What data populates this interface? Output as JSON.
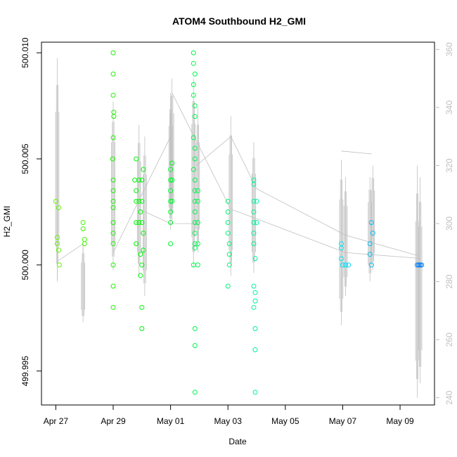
{
  "chart_data": {
    "type": "scatter",
    "title": "ATOM4 Southbound H2_GMI",
    "xlabel": "Date",
    "ylabel": "H2_GMI",
    "y2label": "",
    "x_ticks": [
      "Apr 27",
      "Apr 29",
      "May 01",
      "May 03",
      "May 05",
      "May 07",
      "May 09"
    ],
    "x_tick_values": [
      0,
      2,
      4,
      6,
      8,
      10,
      12
    ],
    "y_ticks": [
      "499.995",
      "500.000",
      "500.005",
      "500.010"
    ],
    "y_tick_values": [
      499.995,
      500.0,
      500.005,
      500.01
    ],
    "y2_ticks": [
      "240",
      "260",
      "280",
      "300",
      "320",
      "340",
      "360"
    ],
    "y2_tick_values": [
      240,
      260,
      280,
      300,
      320,
      340,
      360
    ],
    "x_range": [
      -0.5,
      13.2
    ],
    "y_range": [
      499.9934,
      500.0105
    ],
    "y2_range": [
      237.5,
      362.5
    ],
    "grid": false,
    "series": [
      {
        "marker": "open-circle",
        "color_scale": "time-gradient green to blue",
        "points": [
          [
            0.0,
            500.003
          ],
          [
            0.05,
            500.001
          ],
          [
            0.1,
            500.0027
          ],
          [
            0.05,
            500.0013
          ],
          [
            0.1,
            500.0007
          ],
          [
            0.12,
            500.0
          ],
          [
            0.95,
            500.002
          ],
          [
            0.95,
            500.0017
          ],
          [
            1.0,
            500.0012
          ],
          [
            1.0,
            500.001
          ],
          [
            2.0,
            500.01
          ],
          [
            2.0,
            500.009
          ],
          [
            2.0,
            500.008
          ],
          [
            2.02,
            500.0072
          ],
          [
            2.02,
            500.007
          ],
          [
            2.0,
            500.006
          ],
          [
            1.98,
            500.005
          ],
          [
            2.0,
            500.004
          ],
          [
            2.0,
            500.0035
          ],
          [
            2.0,
            500.003
          ],
          [
            2.0,
            500.0027
          ],
          [
            2.0,
            500.002
          ],
          [
            2.0,
            500.0015
          ],
          [
            2.0,
            500.001
          ],
          [
            2.0,
            500.0
          ],
          [
            2.0,
            499.999
          ],
          [
            2.0,
            499.998
          ],
          [
            2.8,
            500.005
          ],
          [
            2.75,
            500.004
          ],
          [
            2.8,
            500.0035
          ],
          [
            2.8,
            500.003
          ],
          [
            2.8,
            500.002
          ],
          [
            2.8,
            500.001
          ],
          [
            2.9,
            500.004
          ],
          [
            2.9,
            500.003
          ],
          [
            2.9,
            500.002
          ],
          [
            2.95,
            500.0025
          ],
          [
            2.95,
            500.0005
          ],
          [
            2.95,
            499.9995
          ],
          [
            3.0,
            500.004
          ],
          [
            3.0,
            500.003
          ],
          [
            3.0,
            500.002
          ],
          [
            3.0,
            500.0
          ],
          [
            3.0,
            499.998
          ],
          [
            3.0,
            499.997
          ],
          [
            3.05,
            500.0045
          ],
          [
            3.05,
            500.0015
          ],
          [
            3.05,
            500.0007
          ],
          [
            4.0,
            500.004
          ],
          [
            4.0,
            500.0045
          ],
          [
            4.0,
            500.0035
          ],
          [
            4.0,
            500.003
          ],
          [
            4.0,
            500.0025
          ],
          [
            4.0,
            500.002
          ],
          [
            4.0,
            500.001
          ],
          [
            4.05,
            500.0048
          ],
          [
            4.05,
            500.004
          ],
          [
            4.05,
            500.003
          ],
          [
            4.8,
            500.01
          ],
          [
            4.8,
            500.0095
          ],
          [
            4.85,
            500.009
          ],
          [
            4.8,
            500.0085
          ],
          [
            4.8,
            500.008
          ],
          [
            4.85,
            500.0075
          ],
          [
            4.85,
            500.007
          ],
          [
            4.8,
            500.006
          ],
          [
            4.85,
            500.0055
          ],
          [
            4.85,
            500.005
          ],
          [
            4.8,
            500.0045
          ],
          [
            4.85,
            500.004
          ],
          [
            4.85,
            500.0035
          ],
          [
            4.85,
            500.003
          ],
          [
            4.85,
            500.0025
          ],
          [
            4.85,
            500.002
          ],
          [
            4.85,
            500.0015
          ],
          [
            4.85,
            500.001
          ],
          [
            4.85,
            500.0008
          ],
          [
            4.8,
            500.0
          ],
          [
            4.85,
            499.997
          ],
          [
            4.85,
            499.9962
          ],
          [
            4.85,
            499.994
          ],
          [
            4.95,
            500.0035
          ],
          [
            4.95,
            500.003
          ],
          [
            4.95,
            500.002
          ],
          [
            4.95,
            500.001
          ],
          [
            4.95,
            500.0
          ],
          [
            6.0,
            500.003
          ],
          [
            6.0,
            500.0025
          ],
          [
            6.0,
            500.002
          ],
          [
            6.0,
            500.0015
          ],
          [
            6.05,
            500.001
          ],
          [
            6.05,
            500.0005
          ],
          [
            6.05,
            500.0
          ],
          [
            6.0,
            499.999
          ],
          [
            6.9,
            500.004
          ],
          [
            6.9,
            500.0038
          ],
          [
            6.9,
            500.003
          ],
          [
            6.9,
            500.0025
          ],
          [
            6.9,
            500.002
          ],
          [
            6.9,
            500.0015
          ],
          [
            6.9,
            500.001
          ],
          [
            6.95,
            500.0003
          ],
          [
            6.9,
            499.999
          ],
          [
            6.95,
            499.9987
          ],
          [
            6.9,
            499.998
          ],
          [
            6.95,
            499.9983
          ],
          [
            7.0,
            500.003
          ],
          [
            7.0,
            500.002
          ],
          [
            6.95,
            499.997
          ],
          [
            6.95,
            499.996
          ],
          [
            6.95,
            499.994
          ],
          [
            9.95,
            500.001
          ],
          [
            9.95,
            500.0008
          ],
          [
            9.95,
            500.0003
          ],
          [
            10.0,
            500.0
          ],
          [
            10.1,
            500.0
          ],
          [
            10.2,
            500.0
          ],
          [
            10.95,
            500.001
          ],
          [
            10.95,
            500.0005
          ],
          [
            11.0,
            500.0
          ],
          [
            11.05,
            500.0015
          ],
          [
            11.0,
            500.002
          ],
          [
            12.6,
            500.0
          ],
          [
            12.65,
            500.0
          ],
          [
            12.7,
            500.0
          ],
          [
            12.75,
            500.0
          ]
        ]
      },
      {
        "axis": "right",
        "marker": "grey-line",
        "color": "#c0c0c0",
        "spikes": [
          {
            "x": 0.05,
            "low": 280,
            "high": 357
          },
          {
            "x": 0.95,
            "low": 266,
            "high": 293
          },
          {
            "x": 2.0,
            "low": 284,
            "high": 342
          },
          {
            "x": 2.9,
            "low": 282,
            "high": 334
          },
          {
            "x": 3.1,
            "low": 275,
            "high": 330
          },
          {
            "x": 4.0,
            "low": 298,
            "high": 345
          },
          {
            "x": 4.05,
            "low": 300,
            "high": 350
          },
          {
            "x": 4.8,
            "low": 285,
            "high": 350
          },
          {
            "x": 4.95,
            "low": 290,
            "high": 340
          },
          {
            "x": 6.1,
            "low": 282,
            "high": 337
          },
          {
            "x": 6.9,
            "low": 283,
            "high": 328
          },
          {
            "x": 9.95,
            "low": 265,
            "high": 322
          },
          {
            "x": 10.1,
            "low": 275,
            "high": 316
          },
          {
            "x": 10.95,
            "low": 280,
            "high": 316
          },
          {
            "x": 11.05,
            "low": 284,
            "high": 320
          },
          {
            "x": 12.6,
            "low": 240,
            "high": 320
          },
          {
            "x": 12.7,
            "low": 245,
            "high": 316
          }
        ]
      }
    ]
  }
}
